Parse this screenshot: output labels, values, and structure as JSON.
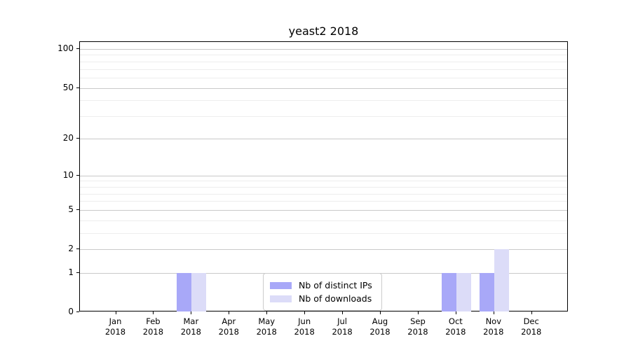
{
  "chart_data": {
    "type": "bar",
    "title": "yeast2 2018",
    "xlabel": "",
    "ylabel": "",
    "x_tick_months": [
      "Jan",
      "Feb",
      "Mar",
      "Apr",
      "May",
      "Jun",
      "Jul",
      "Aug",
      "Sep",
      "Oct",
      "Nov",
      "Dec"
    ],
    "x_tick_year": "2018",
    "series": [
      {
        "name": "Nb of distinct IPs",
        "color": "#a8a8f8",
        "values": [
          0,
          0,
          1,
          0,
          0,
          0,
          0,
          0,
          0,
          1,
          1,
          0
        ]
      },
      {
        "name": "Nb of downloads",
        "color": "#dcdcf8",
        "values": [
          0,
          0,
          1,
          0,
          0,
          0,
          0,
          0,
          0,
          1,
          2,
          0
        ]
      }
    ],
    "yscale": "log1p",
    "ylim": [
      0,
      113
    ],
    "yticks_major": [
      0,
      1,
      2,
      5,
      10,
      20,
      50,
      100
    ],
    "yticks_minor": [
      3,
      4,
      6,
      7,
      8,
      9,
      30,
      40,
      60,
      70,
      80,
      90
    ],
    "grid": true,
    "legend_position": "inside-bottom-center",
    "colors": {
      "major_grid": "#c9c9c9",
      "minor_grid": "#ededed",
      "axis": "#000000",
      "background": "#ffffff"
    }
  }
}
